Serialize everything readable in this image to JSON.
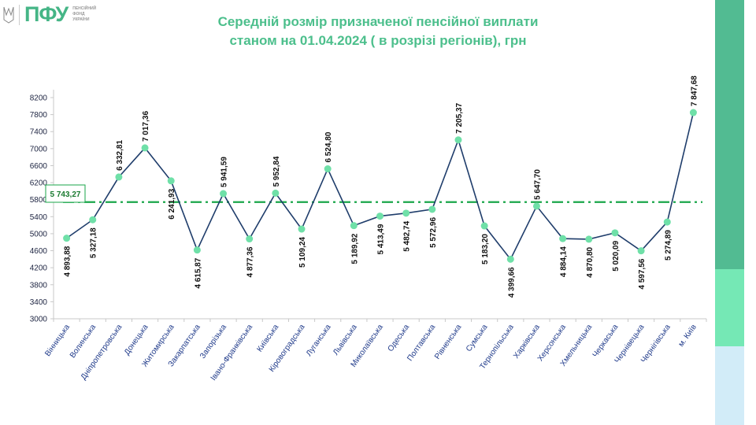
{
  "logo": {
    "mark": "ПФУ",
    "lines": [
      "ПЕНСІЙНИЙ",
      "ФОНД",
      "УКРАЇНИ"
    ]
  },
  "title": {
    "line1": "Середній розмір призначеної пенсійної виплати",
    "line2": "станом на 01.04.2024 ( в розрізі регіонів), грн"
  },
  "colors": {
    "line": "#1f3d6b",
    "marker": "#6fe0a8",
    "average": "#1aa64a",
    "title": "#4cbf8c",
    "side_top": "#52bb92",
    "side_mid": "#75e8b5",
    "side_bottom": "#d2ecf8"
  },
  "chart_data": {
    "type": "line",
    "title": "Середній розмір призначеної пенсійної виплати станом на 01.04.2024 ( в розрізі регіонів), грн",
    "categories": [
      "Вінницька",
      "Волинська",
      "Дніпропетровська",
      "Донецька",
      "Житомирська",
      "Закарпатська",
      "Запорізька",
      "Івано-Франківська",
      "Київська",
      "Кіровоградська",
      "Луганська",
      "Львівська",
      "Миколаївська",
      "Одеська",
      "Полтавська",
      "Рівненська",
      "Сумська",
      "Тернопільська",
      "Харківська",
      "Херсонська",
      "Хмельницька",
      "Черкаська",
      "Чернівецька",
      "Чернігівська",
      "м. Київ"
    ],
    "values": [
      4893.88,
      5327.18,
      6332.81,
      7017.36,
      6241.93,
      4615.87,
      5941.59,
      4877.36,
      5952.84,
      5109.24,
      6524.8,
      5189.92,
      5413.49,
      5482.74,
      5572.96,
      7205.37,
      5183.2,
      4399.66,
      5647.7,
      4884.14,
      4870.8,
      5020.09,
      4597.56,
      5274.89,
      7847.68
    ],
    "labels": [
      "4 893,88",
      "5 327,18",
      "6 332,81",
      "7 017,36",
      "6 241,93",
      "4 615,87",
      "5 941,59",
      "4 877,36",
      "5 952,84",
      "5 109,24",
      "6 524,80",
      "5 189,92",
      "5 413,49",
      "5 482,74",
      "5 572,96",
      "7 205,37",
      "5 183,20",
      "4 399,66",
      "5 647,70",
      "4 884,14",
      "4 870,80",
      "5 020,09",
      "4 597,56",
      "5 274,89",
      "7 847,68"
    ],
    "label_pos": [
      "below",
      "below",
      "above",
      "above",
      "below",
      "below",
      "above",
      "below",
      "above",
      "below",
      "above",
      "below",
      "below",
      "below",
      "below",
      "above",
      "below",
      "below",
      "above",
      "below",
      "below",
      "below",
      "below",
      "below",
      "above"
    ],
    "average": {
      "value": 5743.27,
      "label": "5 743,27"
    },
    "yticks": [
      3000,
      3400,
      3800,
      4200,
      4600,
      5000,
      5400,
      5800,
      6200,
      6600,
      7000,
      7400,
      7800,
      8200
    ],
    "ylim": [
      3000,
      8200
    ],
    "xlabel": "",
    "ylabel": "",
    "grid": false,
    "legend": "none"
  }
}
